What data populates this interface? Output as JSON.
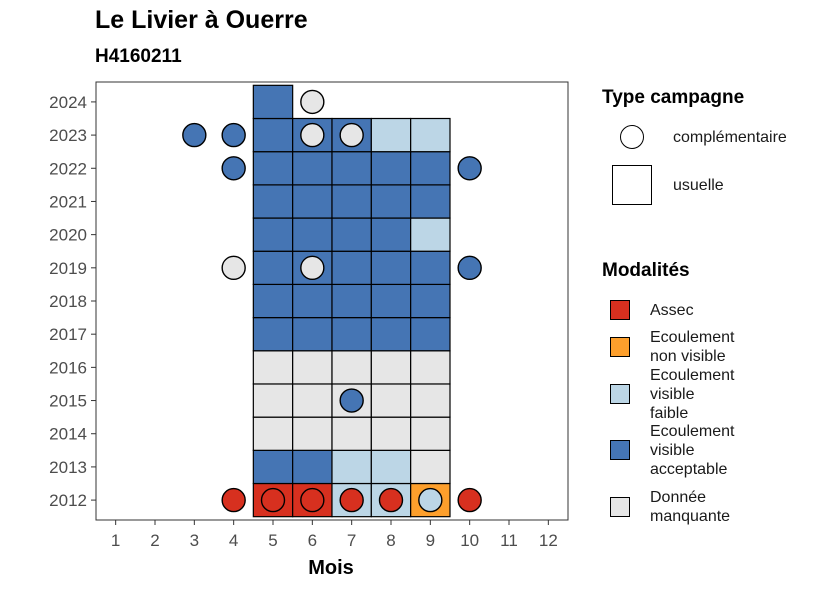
{
  "chart_data": {
    "type": "heatmap",
    "title": "Le Livier à Ouerre",
    "subtitle": "H4160211",
    "xlabel": "Mois",
    "ylabel": "",
    "x_ticks": [
      1,
      2,
      3,
      4,
      5,
      6,
      7,
      8,
      9,
      10,
      11,
      12
    ],
    "y_ticks": [
      2012,
      2013,
      2014,
      2015,
      2016,
      2017,
      2018,
      2019,
      2020,
      2021,
      2022,
      2023,
      2024
    ],
    "xlim": [
      0.5,
      12.5
    ],
    "ylim": [
      2011.4,
      2024.6
    ],
    "grid": false,
    "legend_position": "right",
    "colors": {
      "Assec": "#d7301f",
      "Ecoulement non visible": "#fd9f2c",
      "Ecoulement visible faible": "#bcd6e6",
      "Ecoulement visible acceptable": "#4575b4",
      "Donnée manquante": "#e6e6e6"
    },
    "usuelle": [
      {
        "year": 2012,
        "month": 5,
        "m": "Assec"
      },
      {
        "year": 2012,
        "month": 6,
        "m": "Assec"
      },
      {
        "year": 2012,
        "month": 7,
        "m": "Ecoulement visible faible"
      },
      {
        "year": 2012,
        "month": 8,
        "m": "Ecoulement visible faible"
      },
      {
        "year": 2012,
        "month": 9,
        "m": "Ecoulement non visible"
      },
      {
        "year": 2013,
        "month": 5,
        "m": "Ecoulement visible acceptable"
      },
      {
        "year": 2013,
        "month": 6,
        "m": "Ecoulement visible acceptable"
      },
      {
        "year": 2013,
        "month": 7,
        "m": "Ecoulement visible faible"
      },
      {
        "year": 2013,
        "month": 8,
        "m": "Ecoulement visible faible"
      },
      {
        "year": 2013,
        "month": 9,
        "m": "Donnée manquante"
      },
      {
        "year": 2014,
        "month": 5,
        "m": "Donnée manquante"
      },
      {
        "year": 2014,
        "month": 6,
        "m": "Donnée manquante"
      },
      {
        "year": 2014,
        "month": 7,
        "m": "Donnée manquante"
      },
      {
        "year": 2014,
        "month": 8,
        "m": "Donnée manquante"
      },
      {
        "year": 2014,
        "month": 9,
        "m": "Donnée manquante"
      },
      {
        "year": 2015,
        "month": 5,
        "m": "Donnée manquante"
      },
      {
        "year": 2015,
        "month": 6,
        "m": "Donnée manquante"
      },
      {
        "year": 2015,
        "month": 7,
        "m": "Donnée manquante"
      },
      {
        "year": 2015,
        "month": 8,
        "m": "Donnée manquante"
      },
      {
        "year": 2015,
        "month": 9,
        "m": "Donnée manquante"
      },
      {
        "year": 2016,
        "month": 5,
        "m": "Donnée manquante"
      },
      {
        "year": 2016,
        "month": 6,
        "m": "Donnée manquante"
      },
      {
        "year": 2016,
        "month": 7,
        "m": "Donnée manquante"
      },
      {
        "year": 2016,
        "month": 8,
        "m": "Donnée manquante"
      },
      {
        "year": 2016,
        "month": 9,
        "m": "Donnée manquante"
      },
      {
        "year": 2017,
        "month": 5,
        "m": "Ecoulement visible acceptable"
      },
      {
        "year": 2017,
        "month": 6,
        "m": "Ecoulement visible acceptable"
      },
      {
        "year": 2017,
        "month": 7,
        "m": "Ecoulement visible acceptable"
      },
      {
        "year": 2017,
        "month": 8,
        "m": "Ecoulement visible acceptable"
      },
      {
        "year": 2017,
        "month": 9,
        "m": "Ecoulement visible acceptable"
      },
      {
        "year": 2018,
        "month": 5,
        "m": "Ecoulement visible acceptable"
      },
      {
        "year": 2018,
        "month": 6,
        "m": "Ecoulement visible acceptable"
      },
      {
        "year": 2018,
        "month": 7,
        "m": "Ecoulement visible acceptable"
      },
      {
        "year": 2018,
        "month": 8,
        "m": "Ecoulement visible acceptable"
      },
      {
        "year": 2018,
        "month": 9,
        "m": "Ecoulement visible acceptable"
      },
      {
        "year": 2019,
        "month": 5,
        "m": "Ecoulement visible acceptable"
      },
      {
        "year": 2019,
        "month": 6,
        "m": "Ecoulement visible acceptable"
      },
      {
        "year": 2019,
        "month": 7,
        "m": "Ecoulement visible acceptable"
      },
      {
        "year": 2019,
        "month": 8,
        "m": "Ecoulement visible acceptable"
      },
      {
        "year": 2019,
        "month": 9,
        "m": "Ecoulement visible acceptable"
      },
      {
        "year": 2020,
        "month": 5,
        "m": "Ecoulement visible acceptable"
      },
      {
        "year": 2020,
        "month": 6,
        "m": "Ecoulement visible acceptable"
      },
      {
        "year": 2020,
        "month": 7,
        "m": "Ecoulement visible acceptable"
      },
      {
        "year": 2020,
        "month": 8,
        "m": "Ecoulement visible acceptable"
      },
      {
        "year": 2020,
        "month": 9,
        "m": "Ecoulement visible faible"
      },
      {
        "year": 2021,
        "month": 5,
        "m": "Ecoulement visible acceptable"
      },
      {
        "year": 2021,
        "month": 6,
        "m": "Ecoulement visible acceptable"
      },
      {
        "year": 2021,
        "month": 7,
        "m": "Ecoulement visible acceptable"
      },
      {
        "year": 2021,
        "month": 8,
        "m": "Ecoulement visible acceptable"
      },
      {
        "year": 2021,
        "month": 9,
        "m": "Ecoulement visible acceptable"
      },
      {
        "year": 2022,
        "month": 5,
        "m": "Ecoulement visible acceptable"
      },
      {
        "year": 2022,
        "month": 6,
        "m": "Ecoulement visible acceptable"
      },
      {
        "year": 2022,
        "month": 7,
        "m": "Ecoulement visible acceptable"
      },
      {
        "year": 2022,
        "month": 8,
        "m": "Ecoulement visible acceptable"
      },
      {
        "year": 2022,
        "month": 9,
        "m": "Ecoulement visible acceptable"
      },
      {
        "year": 2023,
        "month": 5,
        "m": "Ecoulement visible acceptable"
      },
      {
        "year": 2023,
        "month": 6,
        "m": "Ecoulement visible acceptable"
      },
      {
        "year": 2023,
        "month": 7,
        "m": "Ecoulement visible acceptable"
      },
      {
        "year": 2023,
        "month": 8,
        "m": "Ecoulement visible faible"
      },
      {
        "year": 2023,
        "month": 9,
        "m": "Ecoulement visible faible"
      },
      {
        "year": 2024,
        "month": 5,
        "m": "Ecoulement visible acceptable"
      }
    ],
    "complementaire": [
      {
        "year": 2012,
        "month": 4,
        "m": "Assec"
      },
      {
        "year": 2012,
        "month": 5,
        "m": "Assec"
      },
      {
        "year": 2012,
        "month": 6,
        "m": "Assec"
      },
      {
        "year": 2012,
        "month": 7,
        "m": "Assec"
      },
      {
        "year": 2012,
        "month": 8,
        "m": "Assec"
      },
      {
        "year": 2012,
        "month": 9,
        "m": "Ecoulement visible faible"
      },
      {
        "year": 2012,
        "month": 10,
        "m": "Assec"
      },
      {
        "year": 2015,
        "month": 7,
        "m": "Ecoulement visible acceptable"
      },
      {
        "year": 2019,
        "month": 4,
        "m": "Donnée manquante"
      },
      {
        "year": 2019,
        "month": 6,
        "m": "Donnée manquante"
      },
      {
        "year": 2019,
        "month": 10,
        "m": "Ecoulement visible acceptable"
      },
      {
        "year": 2022,
        "month": 4,
        "m": "Ecoulement visible acceptable"
      },
      {
        "year": 2022,
        "month": 10,
        "m": "Ecoulement visible acceptable"
      },
      {
        "year": 2023,
        "month": 3,
        "m": "Ecoulement visible acceptable"
      },
      {
        "year": 2023,
        "month": 4,
        "m": "Ecoulement visible acceptable"
      },
      {
        "year": 2023,
        "month": 6,
        "m": "Donnée manquante"
      },
      {
        "year": 2023,
        "month": 7,
        "m": "Donnée manquante"
      },
      {
        "year": 2024,
        "month": 6,
        "m": "Donnée manquante"
      }
    ]
  },
  "legend": {
    "type_title": "Type campagne",
    "type_items": [
      "complémentaire",
      "usuelle"
    ],
    "mod_title": "Modalités",
    "mod_items": [
      {
        "key": "Assec",
        "lines": [
          "Assec"
        ]
      },
      {
        "key": "Ecoulement non visible",
        "lines": [
          "Ecoulement",
          "non visible"
        ]
      },
      {
        "key": "Ecoulement visible faible",
        "lines": [
          "Ecoulement",
          "visible",
          "faible"
        ]
      },
      {
        "key": "Ecoulement visible acceptable",
        "lines": [
          "Ecoulement",
          "visible",
          "acceptable"
        ]
      },
      {
        "key": "Donnée manquante",
        "lines": [
          "Donnée",
          "manquante"
        ]
      }
    ]
  }
}
